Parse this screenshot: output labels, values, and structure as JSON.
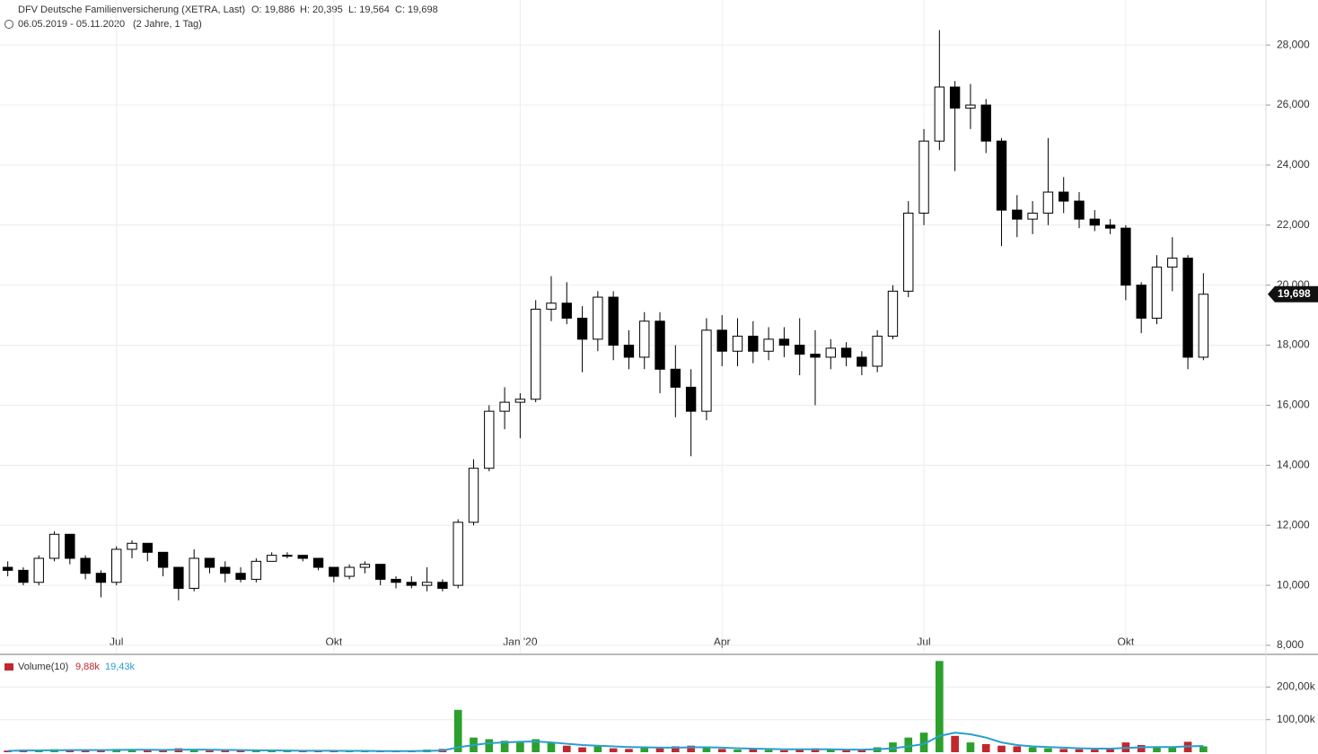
{
  "header": {
    "title": "DFV Deutsche Familienversicherung (XETRA, Last)",
    "ohlc": [
      "O: 19,886",
      "H: 20,395",
      "L: 19,564",
      "C: 19,698"
    ],
    "range": "06.05.2019 - 05.11.2020",
    "period": "(2 Jahre, 1 Tag)"
  },
  "chart_data": [
    {
      "type": "candlestick",
      "categories": [
        null,
        null,
        null,
        null,
        null,
        null,
        null,
        "Jul",
        null,
        null,
        null,
        null,
        null,
        null,
        null,
        null,
        null,
        null,
        null,
        null,
        null,
        "Okt",
        null,
        null,
        null,
        null,
        null,
        null,
        null,
        null,
        null,
        null,
        null,
        "Jan '20",
        null,
        null,
        null,
        null,
        null,
        null,
        null,
        null,
        null,
        null,
        null,
        null,
        "Apr",
        null,
        null,
        null,
        null,
        null,
        null,
        null,
        null,
        null,
        null,
        null,
        null,
        "Jul",
        null,
        null,
        null,
        null,
        null,
        null,
        null,
        null,
        null,
        null,
        null,
        null,
        "Okt",
        null,
        null,
        null,
        null,
        null
      ],
      "open": [
        10.6,
        10.5,
        10.1,
        10.9,
        11.7,
        10.9,
        10.4,
        10.1,
        11.2,
        11.4,
        11.1,
        10.6,
        9.9,
        10.9,
        10.6,
        10.4,
        10.2,
        10.8,
        11.0,
        11.0,
        10.9,
        10.6,
        10.3,
        10.6,
        10.7,
        10.2,
        10.1,
        10.0,
        10.1,
        10.0,
        12.1,
        13.9,
        15.8,
        16.1,
        16.2,
        19.2,
        19.4,
        18.9,
        18.2,
        19.6,
        18.0,
        17.6,
        18.8,
        17.2,
        16.6,
        15.8,
        18.5,
        17.8,
        18.3,
        17.8,
        18.2,
        18.0,
        17.7,
        17.6,
        17.9,
        17.6,
        17.3,
        18.3,
        19.8,
        22.4,
        24.8,
        26.6,
        25.9,
        26.0,
        24.8,
        22.5,
        22.2,
        22.4,
        23.1,
        22.8,
        22.2,
        22.0,
        21.9,
        20.0,
        18.9,
        20.6,
        20.9,
        17.6
      ],
      "high": [
        10.8,
        10.6,
        11.0,
        11.8,
        11.7,
        11.0,
        10.5,
        11.3,
        11.5,
        11.4,
        11.1,
        10.6,
        11.2,
        10.9,
        10.8,
        10.6,
        10.9,
        11.1,
        11.1,
        11.0,
        10.9,
        10.6,
        10.7,
        10.8,
        10.7,
        10.3,
        10.3,
        10.6,
        10.2,
        12.2,
        14.2,
        16.0,
        16.6,
        16.4,
        19.5,
        20.3,
        20.1,
        19.3,
        19.8,
        19.8,
        18.5,
        19.1,
        19.1,
        18.0,
        17.2,
        18.9,
        19.0,
        18.9,
        18.8,
        18.6,
        18.6,
        18.9,
        18.5,
        18.2,
        18.1,
        17.8,
        18.5,
        20.0,
        22.8,
        25.2,
        28.5,
        26.8,
        26.7,
        26.2,
        24.9,
        23.0,
        22.8,
        24.9,
        23.6,
        23.1,
        22.5,
        22.2,
        22.0,
        20.1,
        21.0,
        21.6,
        21.0,
        20.4
      ],
      "low": [
        10.3,
        10.0,
        10.0,
        10.8,
        10.7,
        10.2,
        9.6,
        10.0,
        10.9,
        10.8,
        10.3,
        9.5,
        9.8,
        10.4,
        10.1,
        10.1,
        10.1,
        10.8,
        10.9,
        10.8,
        10.5,
        10.1,
        10.2,
        10.4,
        10.0,
        9.9,
        9.9,
        9.8,
        9.8,
        9.9,
        12.0,
        13.8,
        15.2,
        14.9,
        16.1,
        18.8,
        18.7,
        17.1,
        17.8,
        17.5,
        17.2,
        17.2,
        16.4,
        15.6,
        14.3,
        15.5,
        17.3,
        17.3,
        17.4,
        17.5,
        17.6,
        17.0,
        16.0,
        17.2,
        17.3,
        17.0,
        17.1,
        18.2,
        19.6,
        22.0,
        24.5,
        23.8,
        25.2,
        24.4,
        21.3,
        21.6,
        21.7,
        22.0,
        22.4,
        21.9,
        21.8,
        21.7,
        19.5,
        18.4,
        18.7,
        19.8,
        17.2,
        17.5
      ],
      "close": [
        10.5,
        10.1,
        10.9,
        11.7,
        10.9,
        10.4,
        10.1,
        11.2,
        11.4,
        11.1,
        10.6,
        9.9,
        10.9,
        10.6,
        10.4,
        10.2,
        10.8,
        11.0,
        11.0,
        10.9,
        10.6,
        10.3,
        10.6,
        10.7,
        10.2,
        10.1,
        10.0,
        10.1,
        9.9,
        12.1,
        13.9,
        15.8,
        16.1,
        16.2,
        19.2,
        19.4,
        18.9,
        18.2,
        19.6,
        18.0,
        17.6,
        18.8,
        17.2,
        16.6,
        15.8,
        18.5,
        17.8,
        18.3,
        17.8,
        18.2,
        18.0,
        17.7,
        17.6,
        17.9,
        17.6,
        17.3,
        18.3,
        19.8,
        22.4,
        24.8,
        26.6,
        25.9,
        26.0,
        24.8,
        22.5,
        22.2,
        22.4,
        23.1,
        22.8,
        22.2,
        22.0,
        21.9,
        20.0,
        18.9,
        20.6,
        20.9,
        17.6,
        19.698
      ],
      "up_color": "#ffffff",
      "down_color": "#000000",
      "outline_color": "#000000",
      "ylim": [
        7.73,
        29.5
      ],
      "yticks": [
        {
          "value": 8,
          "label": "8,000"
        },
        {
          "value": 10,
          "label": "10,000"
        },
        {
          "value": 12,
          "label": "12,000"
        },
        {
          "value": 14,
          "label": "14,000"
        },
        {
          "value": 16,
          "label": "16,000"
        },
        {
          "value": 18,
          "label": "18,000"
        },
        {
          "value": 20,
          "label": "20,000"
        },
        {
          "value": 22,
          "label": "22,000"
        },
        {
          "value": 24,
          "label": "24,000"
        },
        {
          "value": 26,
          "label": "26,000"
        },
        {
          "value": 28,
          "label": "28,000"
        }
      ],
      "last_price": {
        "value": 19.698,
        "label": "19,698"
      },
      "grid": true
    },
    {
      "type": "volume",
      "series": [
        {
          "name": "Volume(10)",
          "legend_value": "9,88k",
          "up_color": "#2ca02c",
          "down_color": "#c0282d",
          "color": "#c0282d",
          "values": [
            5000,
            8000,
            6000,
            9000,
            7000,
            5000,
            6000,
            10000,
            8000,
            6000,
            7000,
            12000,
            9000,
            5000,
            6000,
            4000,
            5000,
            4000,
            3000,
            3000,
            4000,
            5000,
            4000,
            3000,
            3000,
            3000,
            4000,
            8000,
            10000,
            130000,
            45000,
            40000,
            35000,
            30000,
            40000,
            28000,
            20000,
            15000,
            18000,
            12000,
            10000,
            14000,
            12000,
            18000,
            20000,
            15000,
            10000,
            8000,
            9000,
            7000,
            6000,
            10000,
            12000,
            8000,
            7000,
            9000,
            15000,
            30000,
            45000,
            60000,
            280000,
            50000,
            30000,
            25000,
            20000,
            18000,
            15000,
            12000,
            10000,
            9000,
            8000,
            10000,
            30000,
            22000,
            15000,
            14000,
            32000,
            18000
          ]
        },
        {
          "name": null,
          "legend_value": "19,43k",
          "color": "#2a9fcf",
          "values": [
            4000,
            5000,
            5500,
            6000,
            6500,
            6500,
            6500,
            7000,
            7500,
            7500,
            7000,
            7500,
            8000,
            7500,
            7000,
            6500,
            6000,
            5500,
            5000,
            4500,
            4500,
            4500,
            4000,
            4000,
            3500,
            3500,
            3500,
            4000,
            5000,
            15000,
            22000,
            28000,
            30000,
            32000,
            33000,
            30000,
            26000,
            22000,
            20000,
            18000,
            16000,
            15000,
            14000,
            14000,
            15000,
            15000,
            14000,
            12000,
            11000,
            10000,
            9000,
            9000,
            9000,
            9000,
            8000,
            8000,
            9000,
            12000,
            18000,
            25000,
            50000,
            60000,
            55000,
            45000,
            30000,
            22000,
            18000,
            16000,
            14000,
            12000,
            11000,
            11000,
            13000,
            15000,
            16000,
            16000,
            18000,
            19430
          ]
        }
      ],
      "ylim": [
        0,
        292000
      ],
      "yticks": [
        {
          "value": 100000,
          "label": "100,00k"
        },
        {
          "value": 200000,
          "label": "200,00k"
        }
      ],
      "grid": true
    }
  ]
}
